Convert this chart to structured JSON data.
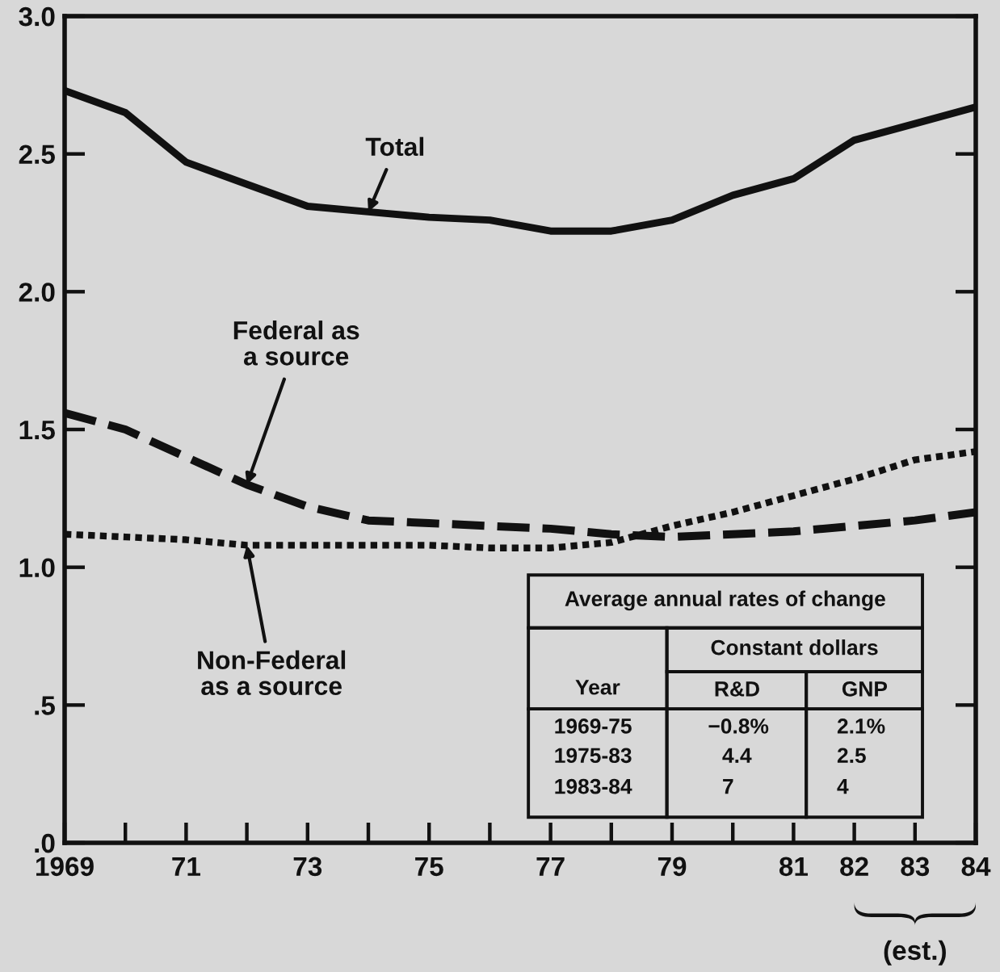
{
  "chart_data": {
    "type": "line",
    "x": [
      1969,
      1970,
      1971,
      1972,
      1973,
      1974,
      1975,
      1976,
      1977,
      1978,
      1979,
      1980,
      1981,
      1982,
      1983,
      1984
    ],
    "series": [
      {
        "name": "Total",
        "color": "#111111",
        "line_style": "solid",
        "values": [
          2.73,
          2.65,
          2.47,
          2.39,
          2.31,
          2.29,
          2.27,
          2.26,
          2.22,
          2.22,
          2.26,
          2.35,
          2.41,
          2.55,
          2.61,
          2.67
        ]
      },
      {
        "name": "Federal as\na source",
        "color": "#111111",
        "line_style": "dashed",
        "values": [
          1.56,
          1.5,
          1.4,
          1.3,
          1.22,
          1.17,
          1.16,
          1.15,
          1.14,
          1.12,
          1.11,
          1.12,
          1.13,
          1.15,
          1.17,
          1.2
        ]
      },
      {
        "name": "Non-Federal\nas a source",
        "color": "#111111",
        "line_style": "dotted",
        "values": [
          1.12,
          1.11,
          1.1,
          1.08,
          1.08,
          1.08,
          1.08,
          1.07,
          1.07,
          1.09,
          1.15,
          1.2,
          1.26,
          1.32,
          1.39,
          1.42
        ]
      }
    ],
    "xlim": [
      1969,
      1984
    ],
    "xticks": [
      {
        "value": 1969,
        "label": "1969"
      },
      {
        "value": 1970,
        "label": null
      },
      {
        "value": 1971,
        "label": "71"
      },
      {
        "value": 1972,
        "label": null
      },
      {
        "value": 1973,
        "label": "73"
      },
      {
        "value": 1974,
        "label": null
      },
      {
        "value": 1975,
        "label": "75"
      },
      {
        "value": 1976,
        "label": null
      },
      {
        "value": 1977,
        "label": "77"
      },
      {
        "value": 1978,
        "label": null
      },
      {
        "value": 1979,
        "label": "79"
      },
      {
        "value": 1980,
        "label": null
      },
      {
        "value": 1981,
        "label": "81"
      },
      {
        "value": 1982,
        "label": "82"
      },
      {
        "value": 1983,
        "label": "83"
      },
      {
        "value": 1984,
        "label": "84"
      }
    ],
    "ylim": [
      0,
      3
    ],
    "yticks": [
      {
        "value": 0,
        "label": ".0"
      },
      {
        "value": 0.5,
        "label": ".5"
      },
      {
        "value": 1,
        "label": "1.0"
      },
      {
        "value": 1.5,
        "label": "1.5"
      },
      {
        "value": 2,
        "label": "2.0"
      },
      {
        "value": 2.5,
        "label": "2.5"
      },
      {
        "value": 3,
        "label": "3.0"
      }
    ],
    "grid": false,
    "legend": false,
    "annotations": [
      "Average annual rates of change",
      "Constant dollars",
      "Year",
      "R&D",
      "GNP",
      "1969-75",
      "−0.8%",
      "2.1%",
      "1975-83",
      "4.4",
      "2.5",
      "1983-84",
      "7",
      "4",
      "(est.)"
    ]
  }
}
